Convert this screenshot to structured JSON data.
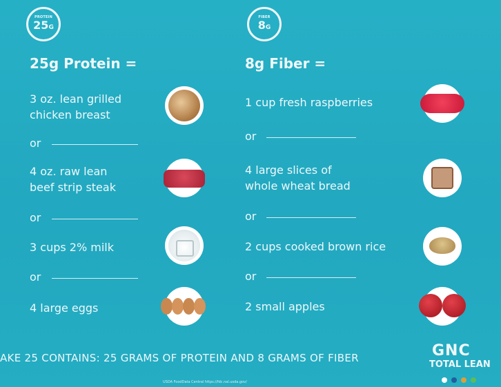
{
  "protein": {
    "badge_label": "PROTEIN",
    "badge_value": "25",
    "badge_unit": "G",
    "heading": "25g Protein =",
    "items": [
      {
        "line1": "3 oz. lean grilled",
        "line2": "chicken breast",
        "icon": "chicken-bowl"
      },
      {
        "line1": "4 oz. raw lean",
        "line2": "beef strip steak",
        "icon": "beef-cubes"
      },
      {
        "line1": "3 cups 2% milk",
        "line2": "",
        "icon": "milk-measuring-cup"
      },
      {
        "line1": "4 large eggs",
        "line2": "",
        "icon": "eggs"
      }
    ]
  },
  "fiber": {
    "badge_label": "FIBER",
    "badge_value": "8",
    "badge_unit": "G",
    "heading": "8g Fiber =",
    "items": [
      {
        "line1": "1 cup fresh raspberries",
        "line2": "",
        "icon": "raspberries"
      },
      {
        "line1": "4 large slices of",
        "line2": "whole wheat bread",
        "icon": "bread-slices"
      },
      {
        "line1": "2 cups cooked brown rice",
        "line2": "",
        "icon": "rice-bowl"
      },
      {
        "line1": "2 small apples",
        "line2": "",
        "icon": "apples"
      }
    ]
  },
  "separator": "or",
  "bottom_text": "AKE 25 CONTAINS: 25 GRAMS OF PROTEIN AND 8 GRAMS OF FIBER",
  "logo": {
    "brand": "GNC",
    "product": "TOTAL LEAN",
    "dot_colors": [
      "#ffffff",
      "#1f5f9e",
      "#d9a03c",
      "#5dbb5a"
    ]
  },
  "footnote": "USDA FoodData Central https://fdc.nal.usda.gov/",
  "colors": {
    "background": "#24adc3",
    "text": "#eef8fa"
  }
}
